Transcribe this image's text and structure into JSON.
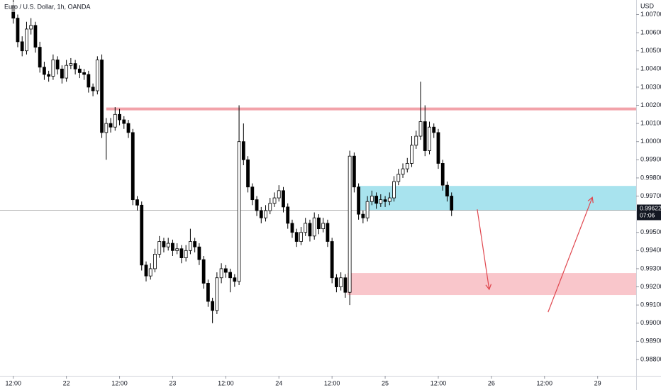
{
  "chart_data": {
    "type": "candlestick",
    "title": "Euro / U.S. Dollar, 1h, OANDA",
    "y_axis_label": "USD",
    "last_price": 0.99622,
    "countdown": "07:06",
    "up_color": "#ffffff",
    "down_color": "#000000",
    "xlim": [
      -3,
      140.7
    ],
    "ylim": [
      0.9871,
      1.0078
    ],
    "xticks": [
      {
        "value": 0,
        "label": "12:00"
      },
      {
        "value": 12,
        "label": "22"
      },
      {
        "value": 24,
        "label": "12:00"
      },
      {
        "value": 36,
        "label": "23"
      },
      {
        "value": 48,
        "label": "12:00"
      },
      {
        "value": 60,
        "label": "24"
      },
      {
        "value": 72,
        "label": "12:00"
      },
      {
        "value": 84,
        "label": "25"
      },
      {
        "value": 96,
        "label": "12:00"
      },
      {
        "value": 108,
        "label": "26"
      },
      {
        "value": 120,
        "label": "12:00"
      },
      {
        "value": 132,
        "label": "29"
      }
    ],
    "yticks": [
      {
        "value": 0.988,
        "label": "0.98800"
      },
      {
        "value": 0.989,
        "label": "0.98900"
      },
      {
        "value": 0.99,
        "label": "0.99000"
      },
      {
        "value": 0.991,
        "label": "0.99100"
      },
      {
        "value": 0.992,
        "label": "0.99200"
      },
      {
        "value": 0.993,
        "label": "0.99300"
      },
      {
        "value": 0.994,
        "label": "0.99400"
      },
      {
        "value": 0.995,
        "label": "0.99500"
      },
      {
        "value": 0.997,
        "label": "0.99700"
      },
      {
        "value": 0.998,
        "label": "0.99800"
      },
      {
        "value": 0.999,
        "label": "0.99900"
      },
      {
        "value": 1.0,
        "label": "1.00000"
      },
      {
        "value": 1.001,
        "label": "1.00100"
      },
      {
        "value": 1.002,
        "label": "1.00200"
      },
      {
        "value": 1.003,
        "label": "1.00300"
      },
      {
        "value": 1.004,
        "label": "1.00400"
      },
      {
        "value": 1.005,
        "label": "1.00500"
      },
      {
        "value": 1.006,
        "label": "1.00600"
      },
      {
        "value": 1.007,
        "label": "1.00700"
      }
    ],
    "x": [
      0,
      1,
      2,
      3,
      4,
      5,
      6,
      7,
      8,
      9,
      10,
      11,
      12,
      13,
      14,
      15,
      16,
      17,
      18,
      19,
      20,
      21,
      22,
      23,
      24,
      25,
      26,
      27,
      28,
      29,
      30,
      31,
      32,
      33,
      34,
      35,
      36,
      37,
      38,
      39,
      40,
      41,
      42,
      43,
      44,
      45,
      46,
      47,
      48,
      49,
      50,
      51,
      52,
      53,
      54,
      55,
      56,
      57,
      58,
      59,
      60,
      61,
      62,
      63,
      64,
      65,
      66,
      67,
      68,
      69,
      70,
      71,
      72,
      73,
      74,
      75,
      76,
      77,
      78,
      79,
      80,
      81,
      82,
      83,
      84,
      85,
      86,
      87,
      88,
      89,
      90,
      91,
      92,
      93,
      94,
      95,
      96,
      97,
      98,
      99
    ],
    "open": [
      1.0075,
      1.0068,
      1.0055,
      1.005,
      1.0062,
      1.0064,
      1.0052,
      1.0041,
      1.0037,
      1.0036,
      1.0045,
      1.004,
      1.0035,
      1.0042,
      1.0043,
      1.004,
      1.0038,
      1.0037,
      1.003,
      1.0028,
      1.0045,
      1.0005,
      1.001,
      1.0008,
      1.0015,
      1.0012,
      1.001,
      1.0005,
      0.9968,
      0.9965,
      0.9932,
      0.9926,
      0.993,
      0.9938,
      0.9945,
      0.9942,
      0.9944,
      0.994,
      0.9941,
      0.9936,
      0.994,
      0.9945,
      0.9942,
      0.9935,
      0.9922,
      0.9912,
      0.9907,
      0.9925,
      0.993,
      0.9928,
      0.9925,
      0.9923,
      1.0,
      0.999,
      0.9975,
      0.9968,
      0.9962,
      0.9958,
      0.9962,
      0.9966,
      0.9969,
      0.9973,
      0.9964,
      0.9955,
      0.995,
      0.9945,
      0.995,
      0.9955,
      0.9948,
      0.9958,
      0.9952,
      0.9955,
      0.9945,
      0.9925,
      0.992,
      0.9925,
      0.9917,
      0.9992,
      0.9975,
      0.996,
      0.9958,
      0.9967,
      0.997,
      0.9966,
      0.9968,
      0.9967,
      0.9969,
      0.9978,
      0.9982,
      0.9985,
      0.9988,
      0.9998,
      1.0003,
      1.0011,
      0.9995,
      1.0008,
      1.0005,
      0.9988,
      0.9976,
      0.997
    ],
    "high": [
      1.0078,
      1.007,
      1.0058,
      1.0066,
      1.0068,
      1.0066,
      1.0055,
      1.0044,
      1.0039,
      1.0048,
      1.0047,
      1.0042,
      1.0045,
      1.0046,
      1.0045,
      1.0042,
      1.004,
      1.0039,
      1.0032,
      1.0047,
      1.0048,
      1.0013,
      1.0013,
      1.0019,
      1.0018,
      1.0014,
      1.0012,
      1.0007,
      0.997,
      0.9967,
      0.9934,
      0.9933,
      0.9941,
      0.9948,
      0.9947,
      0.9947,
      0.9946,
      0.9944,
      0.9943,
      0.9943,
      0.9952,
      0.9947,
      0.9944,
      0.9937,
      0.9924,
      0.9914,
      0.9928,
      0.9933,
      0.9932,
      0.993,
      0.9927,
      1.002,
      1.001,
      0.9992,
      0.9977,
      0.997,
      0.9964,
      0.9965,
      0.9969,
      0.9972,
      0.9976,
      0.9975,
      0.9966,
      0.9957,
      0.9952,
      0.9953,
      0.9958,
      0.9957,
      0.9961,
      0.996,
      0.9958,
      0.9957,
      0.9947,
      0.9927,
      0.9928,
      0.9927,
      0.9995,
      0.9994,
      0.9977,
      0.9962,
      0.997,
      0.9973,
      0.9972,
      0.9971,
      0.997,
      0.9972,
      0.9981,
      0.9985,
      0.9988,
      0.9991,
      1.0003,
      1.0006,
      1.0033,
      1.002,
      1.0011,
      1.001,
      1.0007,
      0.999,
      0.9978,
      0.9972
    ],
    "low": [
      1.0065,
      1.0052,
      1.0047,
      1.0048,
      1.0059,
      1.0049,
      1.0038,
      1.0034,
      1.0033,
      1.0034,
      1.0037,
      1.0032,
      1.0033,
      1.004,
      1.0037,
      1.0035,
      1.0034,
      1.0027,
      1.0025,
      1.0026,
      1.0002,
      0.999,
      1.0005,
      1.0006,
      1.0009,
      1.0007,
      1.0002,
      0.9965,
      0.9962,
      0.9929,
      0.9923,
      0.9924,
      0.9928,
      0.9936,
      0.9939,
      0.994,
      0.9937,
      0.9938,
      0.9933,
      0.9934,
      0.9938,
      0.9939,
      0.9932,
      0.9919,
      0.9909,
      0.99,
      0.9905,
      0.9922,
      0.9925,
      0.9917,
      0.992,
      0.9921,
      0.9987,
      0.9972,
      0.9965,
      0.9959,
      0.9955,
      0.9956,
      0.996,
      0.9964,
      0.9967,
      0.9961,
      0.9952,
      0.9947,
      0.9942,
      0.9943,
      0.9948,
      0.9945,
      0.9946,
      0.9949,
      0.995,
      0.9942,
      0.9922,
      0.9917,
      0.9918,
      0.9914,
      0.991,
      0.9972,
      0.9957,
      0.9955,
      0.9956,
      0.9965,
      0.9963,
      0.9964,
      0.9964,
      0.9965,
      0.9967,
      0.9976,
      0.998,
      0.9983,
      0.9986,
      0.9996,
      1.0001,
      0.9992,
      0.9993,
      1.0002,
      0.9985,
      0.9973,
      0.9967,
      0.9959
    ],
    "close": [
      1.0068,
      1.0055,
      1.005,
      1.0062,
      1.0064,
      1.0052,
      1.0041,
      1.0037,
      1.0036,
      1.0045,
      1.004,
      1.0035,
      1.0042,
      1.0043,
      1.004,
      1.0038,
      1.0037,
      1.003,
      1.0028,
      1.0045,
      1.0005,
      1.001,
      1.0008,
      1.0015,
      1.0012,
      1.001,
      1.0005,
      0.9968,
      0.9965,
      0.9932,
      0.9926,
      0.993,
      0.9938,
      0.9945,
      0.9942,
      0.9944,
      0.994,
      0.9941,
      0.9936,
      0.994,
      0.9945,
      0.9942,
      0.9935,
      0.9922,
      0.9912,
      0.9907,
      0.9925,
      0.993,
      0.9928,
      0.9925,
      0.9923,
      1.0,
      0.999,
      0.9975,
      0.9968,
      0.9962,
      0.9958,
      0.9962,
      0.9966,
      0.9969,
      0.9973,
      0.9964,
      0.9955,
      0.995,
      0.9945,
      0.995,
      0.9955,
      0.9948,
      0.9958,
      0.9952,
      0.9955,
      0.9945,
      0.9925,
      0.992,
      0.9925,
      0.9917,
      0.9992,
      0.9975,
      0.996,
      0.9958,
      0.9967,
      0.997,
      0.9966,
      0.9968,
      0.9967,
      0.9969,
      0.9978,
      0.9982,
      0.9985,
      0.9988,
      0.9998,
      1.0003,
      1.0011,
      0.9995,
      1.0008,
      1.0005,
      0.9988,
      0.9976,
      0.997,
      0.99622
    ],
    "level": {
      "price": 1.0018,
      "from": 21,
      "color": "#f2a3aa"
    },
    "zones": [
      {
        "top": 0.99756,
        "bottom": 0.9962,
        "from": 78,
        "color": "#a8e3ee"
      },
      {
        "top": 0.99276,
        "bottom": 0.99155,
        "from": 75.5,
        "color": "#f9c6cb"
      }
    ],
    "arrows": [
      {
        "x1": 104.8,
        "y1": 0.99627,
        "x2": 107.5,
        "y2": 0.99186
      },
      {
        "x1": 120.8,
        "y1": 0.99061,
        "x2": 130.8,
        "y2": 0.99693
      }
    ],
    "arrow_color": "#e0464e"
  }
}
